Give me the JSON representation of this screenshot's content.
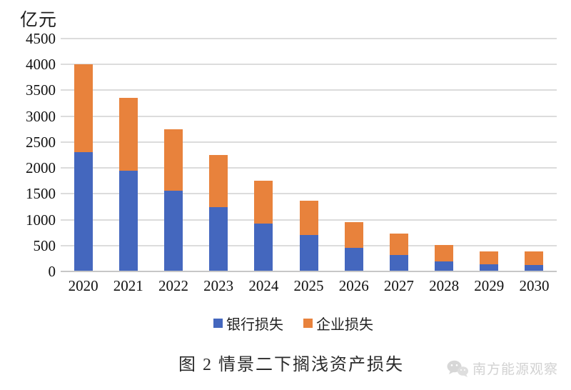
{
  "chart_data": {
    "type": "bar",
    "stacked": true,
    "title": "图 2 情景二下搁浅资产损失",
    "ylabel": "亿元",
    "xlabel": "",
    "categories": [
      "2020",
      "2021",
      "2022",
      "2023",
      "2024",
      "2025",
      "2026",
      "2027",
      "2028",
      "2029",
      "2030"
    ],
    "series": [
      {
        "name": "银行损失",
        "color": "#4467BE",
        "values": [
          2300,
          1950,
          1560,
          1240,
          930,
          700,
          450,
          320,
          200,
          140,
          130
        ]
      },
      {
        "name": "企业损失",
        "color": "#E8823C",
        "values": [
          1700,
          1400,
          1190,
          1010,
          830,
          670,
          510,
          410,
          310,
          250,
          260
        ]
      }
    ],
    "ylim": [
      0,
      4500
    ],
    "ytick_step": 500,
    "grid": true,
    "legend_position": "bottom"
  },
  "watermark": {
    "text": "南方能源观察",
    "icon": "wechat-bubbles-icon",
    "color": "#d2d2d2"
  }
}
